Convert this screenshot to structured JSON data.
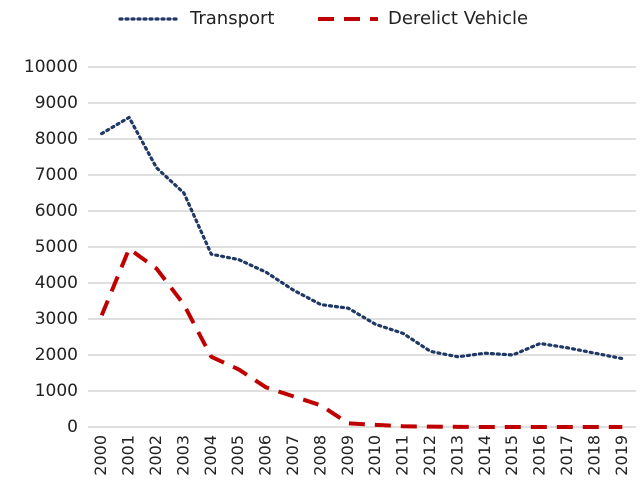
{
  "chart_data": {
    "type": "line",
    "categories": [
      "2000",
      "2001",
      "2002",
      "2003",
      "2004",
      "2005",
      "2006",
      "2007",
      "2008",
      "2009",
      "2010",
      "2011",
      "2012",
      "2013",
      "2014",
      "2015",
      "2016",
      "2017",
      "2018",
      "2019"
    ],
    "series": [
      {
        "name": "Transport",
        "color": "#1f3864",
        "style": "dotted",
        "values": [
          8150,
          8600,
          7200,
          6500,
          4800,
          4650,
          4300,
          3800,
          3400,
          3300,
          2850,
          2600,
          2100,
          1950,
          2050,
          2000,
          2320,
          2200,
          2050,
          1900
        ]
      },
      {
        "name": "Derelict Vehicle",
        "color": "#c00000",
        "style": "dashed",
        "values": [
          3100,
          4950,
          4400,
          3400,
          1950,
          1600,
          1100,
          850,
          600,
          100,
          60,
          20,
          10,
          5,
          0,
          0,
          0,
          0,
          0,
          0
        ]
      }
    ],
    "ylim": [
      0,
      10000
    ],
    "yticks": [
      0,
      1000,
      2000,
      3000,
      4000,
      5000,
      6000,
      7000,
      8000,
      9000,
      10000
    ],
    "grid": true,
    "legend": "top"
  }
}
